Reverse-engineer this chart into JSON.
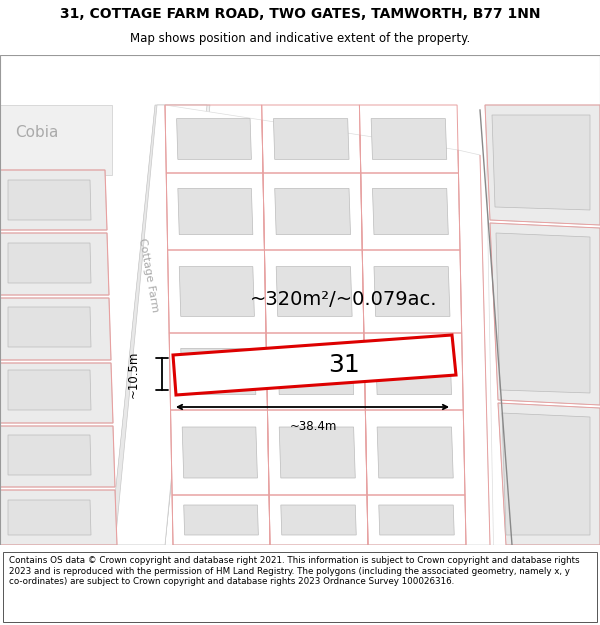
{
  "title_line1": "31, COTTAGE FARM ROAD, TWO GATES, TAMWORTH, B77 1NN",
  "title_line2": "Map shows position and indicative extent of the property.",
  "footer_text": "Contains OS data © Crown copyright and database right 2021. This information is subject to Crown copyright and database rights 2023 and is reproduced with the permission of HM Land Registry. The polygons (including the associated geometry, namely x, y co-ordinates) are subject to Crown copyright and database rights 2023 Ordnance Survey 100026316.",
  "background_color": "#ffffff",
  "map_bg": "#f7f7f7",
  "pink_stroke": "#e8a0a0",
  "red_stroke": "#dd0000",
  "dark_stroke": "#555555",
  "gray_fill": "#e2e2e2",
  "white_fill": "#ffffff",
  "light_gray": "#ebebeb",
  "road_gray": "#cccccc",
  "area_text": "~320m²/~0.079ac.",
  "label_text": "31",
  "width_text": "~38.4m",
  "height_text": "~10.5m",
  "road_label": "Cottage Farm",
  "place_label": "Cobia",
  "title_fontsize": 10,
  "subtitle_fontsize": 8.5,
  "footer_fontsize": 6.3,
  "area_fontsize": 14,
  "label_fontsize": 18,
  "annot_fontsize": 8.5,
  "cobia_fontsize": 11,
  "road_label_fontsize": 8
}
